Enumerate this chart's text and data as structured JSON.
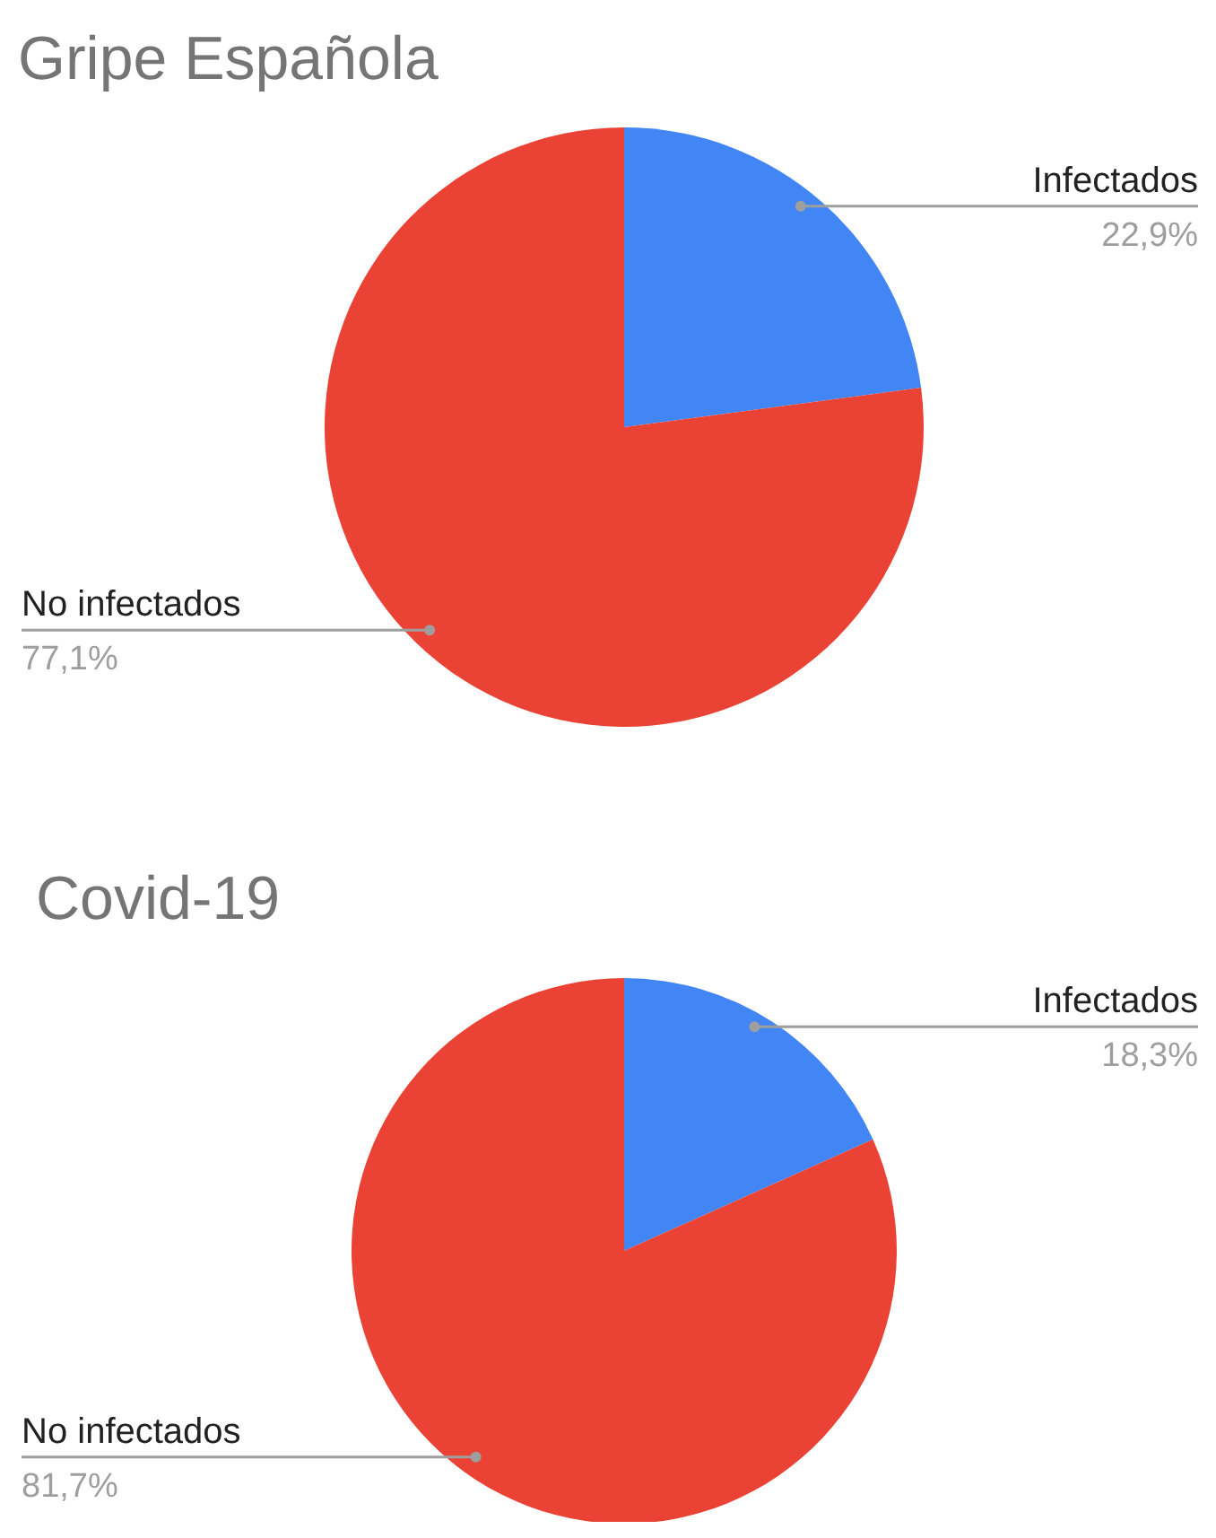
{
  "chart_data": [
    {
      "type": "pie",
      "title": "Gripe Española",
      "categories": [
        "Infectados",
        "No infectados"
      ],
      "values": [
        22.9,
        77.1
      ],
      "colors": [
        "#4285f4",
        "#ea4335"
      ],
      "value_labels": [
        "22,9%",
        "77,1%"
      ]
    },
    {
      "type": "pie",
      "title": "Covid-19",
      "categories": [
        "Infectados",
        "No infectados"
      ],
      "values": [
        18.3,
        81.7
      ],
      "colors": [
        "#4285f4",
        "#ea4335"
      ],
      "value_labels": [
        "18,3%",
        "81,7%"
      ]
    }
  ]
}
